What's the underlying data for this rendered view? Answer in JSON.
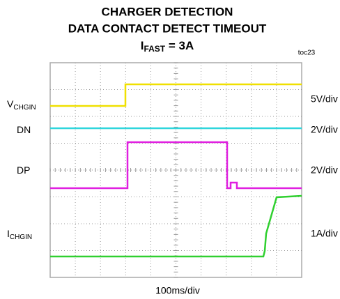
{
  "title": {
    "line1": "CHARGER DETECTION",
    "line2": "DATA CONTACT DETECT TIMEOUT",
    "line3": {
      "main": "I",
      "sub": "FAST",
      "rest": " = 3A"
    }
  },
  "figure_id": "toc23",
  "channels": [
    {
      "label": {
        "main": "V",
        "sub": "CHGIN"
      },
      "scale": "5V/div"
    },
    {
      "label": {
        "main": "DN",
        "sub": ""
      },
      "scale": "2V/div"
    },
    {
      "label": {
        "main": "DP",
        "sub": ""
      },
      "scale": "2V/div"
    },
    {
      "label": {
        "main": "I",
        "sub": "CHGIN"
      },
      "scale": "1A/div"
    }
  ],
  "time_scale": "100ms/div"
}
